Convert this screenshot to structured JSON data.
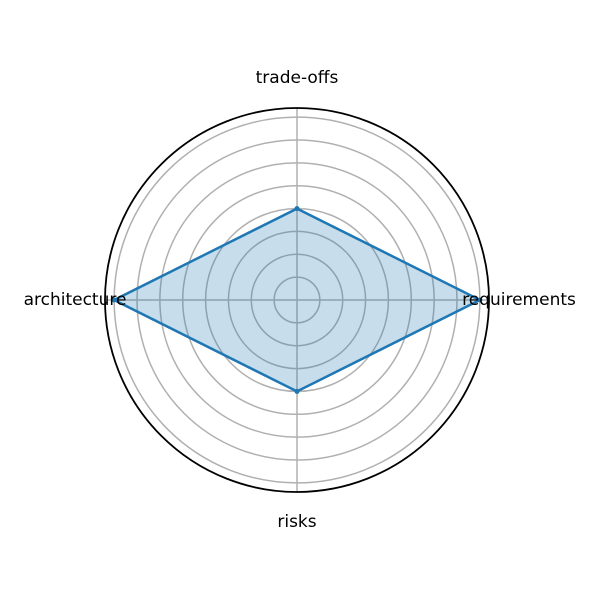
{
  "chart_data": {
    "type": "radar",
    "categories": [
      "requirements",
      "trade-offs",
      "architecture",
      "risks"
    ],
    "series": [
      {
        "values": [
          4.0,
          2.0,
          4.0,
          2.0
        ]
      }
    ],
    "rlim": [
      0,
      4.2
    ],
    "grid": true,
    "colors": {
      "line": "#1f77b4",
      "fill": "#1f77b4",
      "grid": "#b0b0b0",
      "frame": "#000000"
    }
  }
}
